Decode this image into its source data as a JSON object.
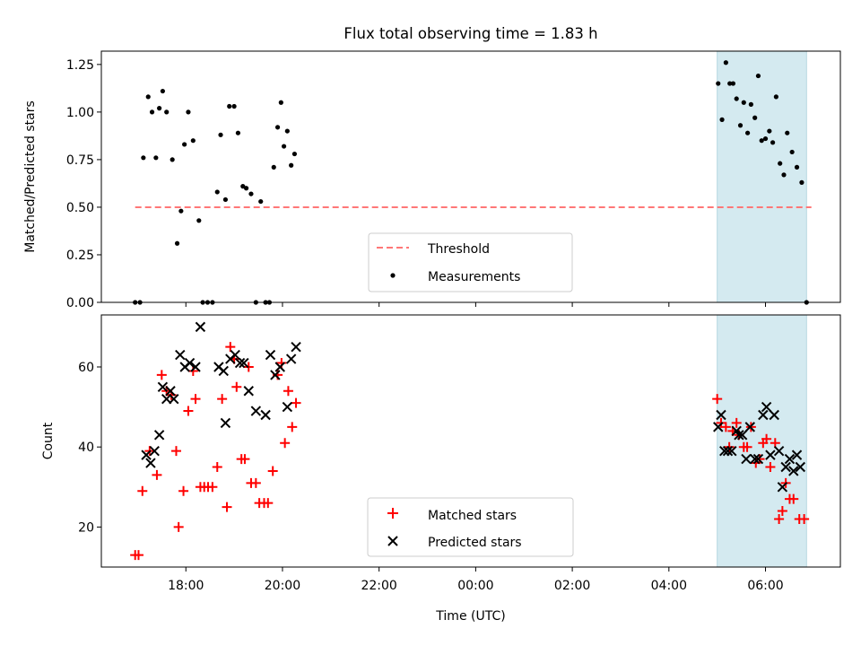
{
  "figure": {
    "title": "Flux total observing time = 1.83 h",
    "xlabel": "Time (UTC)",
    "x_ticks": [
      {
        "t": 18.0,
        "label": "18:00"
      },
      {
        "t": 20.0,
        "label": "20:00"
      },
      {
        "t": 22.0,
        "label": "22:00"
      },
      {
        "t": 24.0,
        "label": "00:00"
      },
      {
        "t": 26.0,
        "label": "02:00"
      },
      {
        "t": 28.0,
        "label": "04:00"
      },
      {
        "t": 30.0,
        "label": "06:00"
      }
    ],
    "colors": {
      "threshold": "#ff7777",
      "matched": "#ff0000",
      "predicted": "#000000",
      "highlight": "#d4eaf0",
      "measurement": "#000000"
    }
  },
  "chart_data": [
    {
      "type": "scatter",
      "ylabel": "Matched/Predicted stars",
      "xlim": [
        16.25,
        31.55
      ],
      "ylim": [
        0.0,
        1.32
      ],
      "y_ticks": [
        "0.00",
        "0.25",
        "0.50",
        "0.75",
        "1.00",
        "1.25"
      ],
      "highlight_span": [
        29.0,
        30.85
      ],
      "threshold": {
        "label": "Threshold",
        "y": 0.5,
        "x_range": [
          16.95,
          30.95
        ]
      },
      "legend": {
        "position": "bottom-center",
        "entries": [
          "Threshold",
          "Measurements"
        ]
      },
      "series": [
        {
          "name": "Measurements",
          "points": [
            [
              16.95,
              0.0
            ],
            [
              17.05,
              0.0
            ],
            [
              17.12,
              0.76
            ],
            [
              17.22,
              1.08
            ],
            [
              17.3,
              1.0
            ],
            [
              17.38,
              0.76
            ],
            [
              17.45,
              1.02
            ],
            [
              17.52,
              1.11
            ],
            [
              17.6,
              1.0
            ],
            [
              17.72,
              0.75
            ],
            [
              17.82,
              0.31
            ],
            [
              17.9,
              0.48
            ],
            [
              17.97,
              0.83
            ],
            [
              18.05,
              1.0
            ],
            [
              18.15,
              0.85
            ],
            [
              18.27,
              0.43
            ],
            [
              18.35,
              0.0
            ],
            [
              18.45,
              0.0
            ],
            [
              18.55,
              0.0
            ],
            [
              18.65,
              0.58
            ],
            [
              18.72,
              0.88
            ],
            [
              18.82,
              0.54
            ],
            [
              18.9,
              1.03
            ],
            [
              19.0,
              1.03
            ],
            [
              19.08,
              0.89
            ],
            [
              19.18,
              0.61
            ],
            [
              19.25,
              0.6
            ],
            [
              19.35,
              0.57
            ],
            [
              19.45,
              0.0
            ],
            [
              19.55,
              0.53
            ],
            [
              19.65,
              0.0
            ],
            [
              19.73,
              0.0
            ],
            [
              19.82,
              0.71
            ],
            [
              19.9,
              0.92
            ],
            [
              19.97,
              1.05
            ],
            [
              20.03,
              0.82
            ],
            [
              20.1,
              0.9
            ],
            [
              20.18,
              0.72
            ],
            [
              20.25,
              0.78
            ],
            [
              29.02,
              1.15
            ],
            [
              29.1,
              0.96
            ],
            [
              29.18,
              1.26
            ],
            [
              29.26,
              1.15
            ],
            [
              29.33,
              1.15
            ],
            [
              29.4,
              1.07
            ],
            [
              29.48,
              0.93
            ],
            [
              29.55,
              1.05
            ],
            [
              29.63,
              0.89
            ],
            [
              29.7,
              1.04
            ],
            [
              29.78,
              0.97
            ],
            [
              29.85,
              1.19
            ],
            [
              29.92,
              0.85
            ],
            [
              30.0,
              0.86
            ],
            [
              30.08,
              0.9
            ],
            [
              30.15,
              0.84
            ],
            [
              30.22,
              1.08
            ],
            [
              30.3,
              0.73
            ],
            [
              30.38,
              0.67
            ],
            [
              30.45,
              0.89
            ],
            [
              30.55,
              0.79
            ],
            [
              30.65,
              0.71
            ],
            [
              30.75,
              0.63
            ],
            [
              30.85,
              0.0
            ]
          ]
        }
      ]
    },
    {
      "type": "scatter",
      "ylabel": "Count",
      "xlim": [
        16.25,
        31.55
      ],
      "ylim": [
        10.0,
        73.0
      ],
      "y_ticks": [
        "20",
        "40",
        "60"
      ],
      "highlight_span": [
        29.0,
        30.85
      ],
      "legend": {
        "position": "bottom-center",
        "entries": [
          "Matched stars",
          "Predicted stars"
        ]
      },
      "series": [
        {
          "name": "Matched stars",
          "marker": "+",
          "points": [
            [
              16.95,
              13
            ],
            [
              17.02,
              13
            ],
            [
              17.1,
              29
            ],
            [
              17.25,
              39
            ],
            [
              17.4,
              33
            ],
            [
              17.5,
              58
            ],
            [
              17.6,
              54
            ],
            [
              17.7,
              53
            ],
            [
              17.8,
              39
            ],
            [
              17.85,
              20
            ],
            [
              17.95,
              29
            ],
            [
              18.05,
              49
            ],
            [
              18.15,
              59
            ],
            [
              18.2,
              52
            ],
            [
              18.3,
              30
            ],
            [
              18.38,
              30
            ],
            [
              18.46,
              30
            ],
            [
              18.55,
              30
            ],
            [
              18.65,
              35
            ],
            [
              18.75,
              52
            ],
            [
              18.85,
              25
            ],
            [
              18.92,
              65
            ],
            [
              19.0,
              62
            ],
            [
              19.05,
              55
            ],
            [
              19.15,
              37
            ],
            [
              19.22,
              37
            ],
            [
              19.3,
              60
            ],
            [
              19.35,
              31
            ],
            [
              19.45,
              31
            ],
            [
              19.52,
              26
            ],
            [
              19.62,
              26
            ],
            [
              19.7,
              26
            ],
            [
              19.8,
              34
            ],
            [
              19.9,
              58
            ],
            [
              19.98,
              61
            ],
            [
              20.05,
              41
            ],
            [
              20.12,
              54
            ],
            [
              20.2,
              45
            ],
            [
              20.28,
              51
            ],
            [
              29.0,
              52
            ],
            [
              29.08,
              46
            ],
            [
              29.18,
              45
            ],
            [
              29.25,
              40
            ],
            [
              29.32,
              44
            ],
            [
              29.4,
              46
            ],
            [
              29.45,
              43
            ],
            [
              29.55,
              40
            ],
            [
              29.62,
              40
            ],
            [
              29.7,
              45
            ],
            [
              29.8,
              36
            ],
            [
              29.88,
              37
            ],
            [
              29.95,
              41
            ],
            [
              30.02,
              42
            ],
            [
              30.1,
              35
            ],
            [
              30.2,
              41
            ],
            [
              30.28,
              22
            ],
            [
              30.35,
              24
            ],
            [
              30.42,
              31
            ],
            [
              30.5,
              27
            ],
            [
              30.58,
              27
            ],
            [
              30.7,
              22
            ],
            [
              30.8,
              22
            ]
          ]
        },
        {
          "name": "Predicted stars",
          "marker": "x",
          "points": [
            [
              17.18,
              38
            ],
            [
              17.27,
              36
            ],
            [
              17.35,
              39
            ],
            [
              17.45,
              43
            ],
            [
              17.52,
              55
            ],
            [
              17.6,
              52
            ],
            [
              17.68,
              54
            ],
            [
              17.75,
              52
            ],
            [
              17.88,
              63
            ],
            [
              17.98,
              60
            ],
            [
              18.08,
              61
            ],
            [
              18.2,
              60
            ],
            [
              18.3,
              70
            ],
            [
              18.68,
              60
            ],
            [
              18.78,
              59
            ],
            [
              18.82,
              46
            ],
            [
              18.92,
              62
            ],
            [
              19.02,
              63
            ],
            [
              19.12,
              61
            ],
            [
              19.2,
              61
            ],
            [
              19.3,
              54
            ],
            [
              19.45,
              49
            ],
            [
              19.65,
              48
            ],
            [
              19.75,
              63
            ],
            [
              19.85,
              58
            ],
            [
              19.95,
              60
            ],
            [
              20.1,
              50
            ],
            [
              20.18,
              62
            ],
            [
              20.28,
              65
            ],
            [
              29.02,
              45
            ],
            [
              29.08,
              48
            ],
            [
              29.15,
              39
            ],
            [
              29.22,
              39
            ],
            [
              29.3,
              39
            ],
            [
              29.4,
              44
            ],
            [
              29.45,
              43
            ],
            [
              29.52,
              43
            ],
            [
              29.6,
              37
            ],
            [
              29.68,
              45
            ],
            [
              29.78,
              37
            ],
            [
              29.85,
              37
            ],
            [
              29.95,
              48
            ],
            [
              30.02,
              50
            ],
            [
              30.1,
              38
            ],
            [
              30.18,
              48
            ],
            [
              30.28,
              39
            ],
            [
              30.35,
              30
            ],
            [
              30.42,
              35
            ],
            [
              30.5,
              37
            ],
            [
              30.58,
              34
            ],
            [
              30.65,
              38
            ],
            [
              30.72,
              35
            ]
          ]
        }
      ]
    }
  ]
}
